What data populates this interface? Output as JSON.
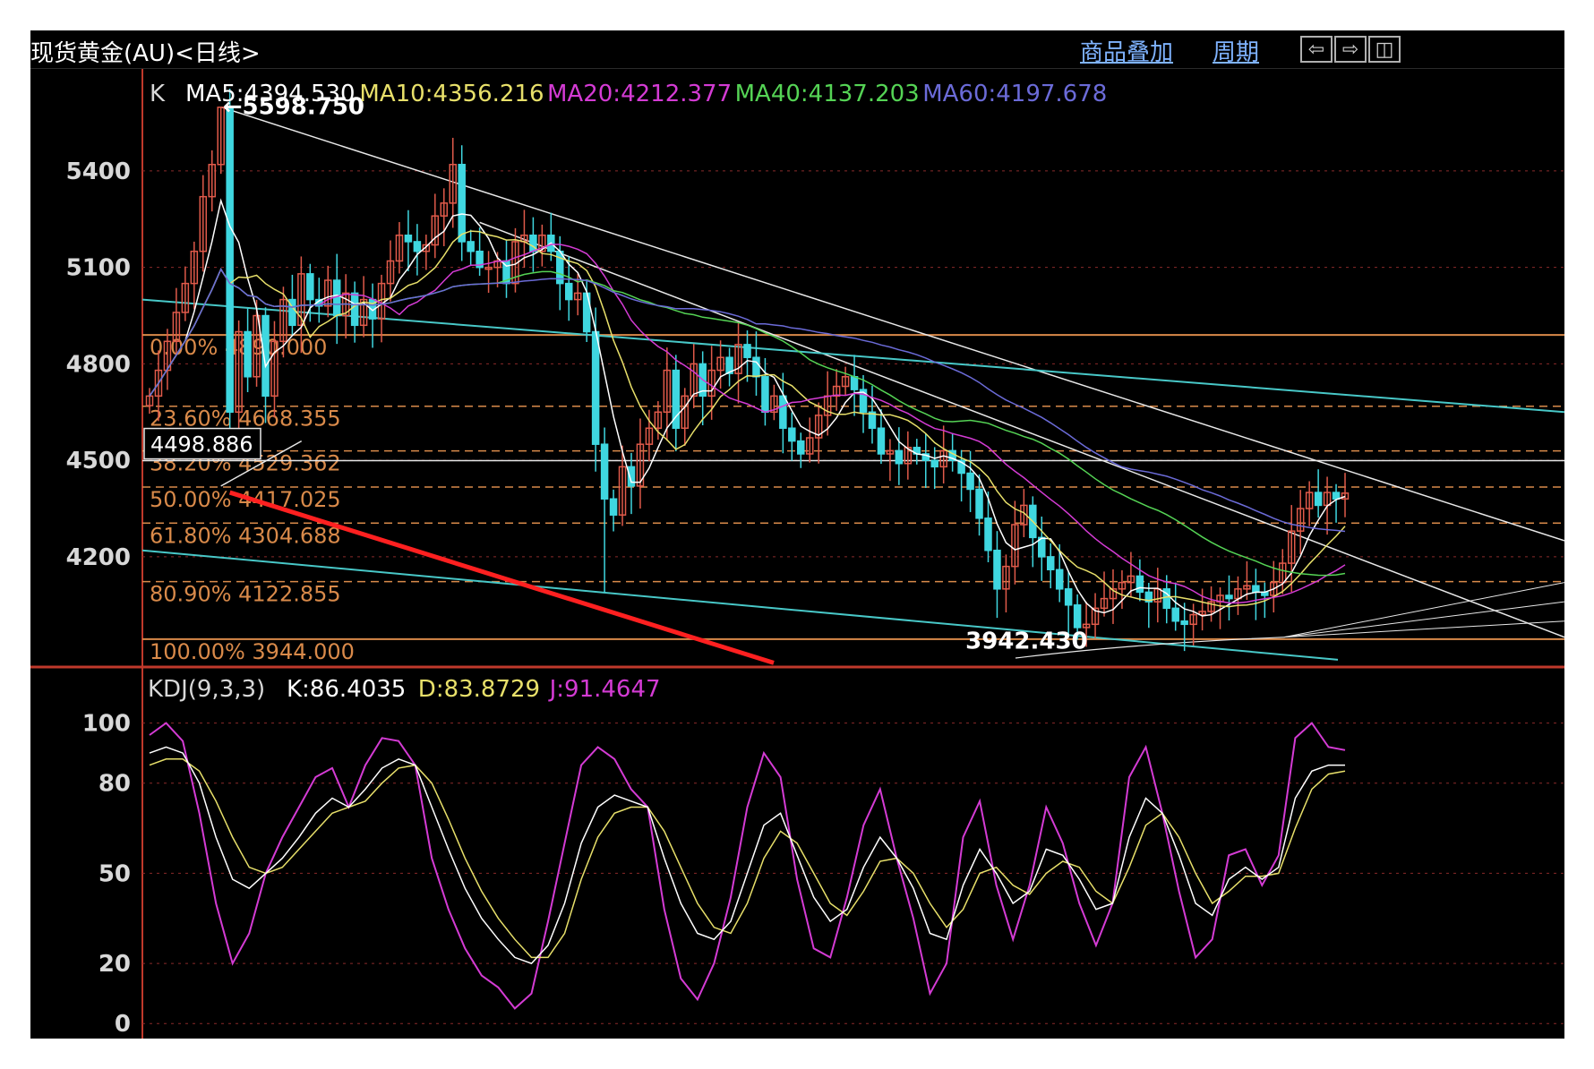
{
  "window": {
    "title": "现货黄金(AU)<日线>",
    "links": [
      "商品叠加",
      "周期"
    ],
    "nav_icons": [
      "arrow-left-icon",
      "arrow-right-icon",
      "layout-icon"
    ]
  },
  "colors": {
    "background": "#000000",
    "frame": "#c0392b",
    "up_candle": "#e05a4a",
    "down_candle": "#3fd7e0",
    "ma5": "#ffffff",
    "ma10": "#e8e06a",
    "ma20": "#d43bd4",
    "ma40": "#55d455",
    "ma60": "#6b6bd8",
    "fib": "#d98a4a",
    "trend_white": "#e8e8e8",
    "trend_cyan": "#48c8c8",
    "trend_red": "#ff2020"
  },
  "chart_data": [
    {
      "type": "candlestick",
      "panel": "price",
      "indicator_label": "K",
      "ma_labels": [
        {
          "text": "MA5:4394.530",
          "color": "#ffffff"
        },
        {
          "text": "MA10:4356.216",
          "color": "#e8e06a"
        },
        {
          "text": "MA20:4212.377",
          "color": "#d43bd4"
        },
        {
          "text": "MA40:4137.203",
          "color": "#55d455"
        },
        {
          "text": "MA60:4197.678",
          "color": "#6b6bd8"
        }
      ],
      "y_ticks": [
        "5400",
        "5100",
        "4800",
        "4500",
        "4200"
      ],
      "y_tick_values": [
        5400,
        5100,
        4800,
        4500,
        4200
      ],
      "ylim": [
        3860,
        5720
      ],
      "high_marker": "←5598.750",
      "low_marker": "3942.430",
      "crosshair_value": "4498.886",
      "fibonacci": [
        {
          "label": "0.00% 4890.000",
          "value": 4890.0
        },
        {
          "label": "23.60% 4668.355",
          "value": 4668.355
        },
        {
          "label": "38.20% 4529.362",
          "value": 4529.362
        },
        {
          "label": "50.00% 4417.025",
          "value": 4417.025
        },
        {
          "label": "61.80% 4304.688",
          "value": 4304.688
        },
        {
          "label": "80.90% 4122.855",
          "value": 4122.855
        },
        {
          "label": "100.00% 3944.000",
          "value": 3944.0
        }
      ],
      "close_series": [
        4700,
        4780,
        4870,
        4960,
        5050,
        5150,
        5320,
        5420,
        5598,
        4650,
        4900,
        4760,
        4950,
        4700,
        4870,
        5000,
        4920,
        5080,
        5000,
        4980,
        5060,
        4950,
        5020,
        4920,
        5000,
        4940,
        5050,
        5120,
        5200,
        5180,
        5150,
        5170,
        5260,
        5300,
        5420,
        5180,
        5150,
        5100,
        5100,
        5120,
        5050,
        5180,
        5200,
        5150,
        5200,
        5150,
        5050,
        5000,
        5020,
        4900,
        4550,
        4380,
        4330,
        4480,
        4420,
        4550,
        4600,
        4650,
        4780,
        4600,
        4700,
        4800,
        4700,
        4780,
        4820,
        4770,
        4860,
        4820,
        4760,
        4650,
        4700,
        4600,
        4560,
        4520,
        4570,
        4640,
        4700,
        4730,
        4760,
        4720,
        4650,
        4600,
        4520,
        4530,
        4490,
        4540,
        4520,
        4500,
        4480,
        4530,
        4500,
        4460,
        4410,
        4320,
        4220,
        4100,
        4170,
        4300,
        4360,
        4260,
        4200,
        4160,
        4100,
        4050,
        3980,
        3990,
        4040,
        4070,
        4100,
        4120,
        4140,
        4090,
        4060,
        4100,
        4040,
        4000,
        3990,
        4020,
        4030,
        4060,
        4080,
        4070,
        4100,
        4110,
        4090,
        4080,
        4120,
        4180,
        4280,
        4350,
        4400,
        4360,
        4400,
        4380,
        4398
      ],
      "kdj_panel": {
        "label": "KDJ(9,3,3)",
        "values_text": [
          {
            "text": "K:86.4035",
            "color": "#ffffff"
          },
          {
            "text": "D:83.8729",
            "color": "#e8e06a"
          },
          {
            "text": "J:91.4647",
            "color": "#d43bd4"
          }
        ],
        "y_ticks": [
          "100",
          "80",
          "50",
          "20",
          "0"
        ],
        "y_tick_values": [
          100,
          80,
          50,
          20,
          0
        ],
        "ylim": [
          -5,
          110
        ],
        "K": [
          90,
          92,
          90,
          80,
          62,
          48,
          45,
          50,
          55,
          62,
          70,
          75,
          72,
          78,
          85,
          88,
          86,
          72,
          58,
          45,
          35,
          28,
          22,
          20,
          26,
          40,
          60,
          72,
          76,
          74,
          72,
          55,
          40,
          30,
          28,
          34,
          50,
          66,
          70,
          56,
          42,
          34,
          38,
          52,
          62,
          55,
          45,
          30,
          28,
          46,
          58,
          50,
          40,
          44,
          58,
          56,
          48,
          38,
          40,
          62,
          75,
          70,
          56,
          40,
          36,
          48,
          52,
          48,
          52,
          75,
          84,
          86,
          86
        ],
        "D": [
          86,
          88,
          88,
          84,
          74,
          62,
          52,
          50,
          52,
          58,
          64,
          70,
          72,
          74,
          80,
          85,
          86,
          80,
          68,
          55,
          44,
          35,
          28,
          22,
          22,
          30,
          48,
          62,
          70,
          72,
          72,
          64,
          52,
          40,
          32,
          30,
          40,
          55,
          64,
          60,
          50,
          40,
          36,
          44,
          54,
          55,
          50,
          40,
          32,
          38,
          50,
          52,
          46,
          43,
          50,
          54,
          52,
          44,
          40,
          52,
          66,
          70,
          62,
          50,
          40,
          44,
          49,
          49,
          50,
          65,
          78,
          83,
          84
        ],
        "J": [
          96,
          100,
          94,
          70,
          40,
          20,
          30,
          50,
          62,
          72,
          82,
          85,
          72,
          86,
          95,
          94,
          86,
          55,
          38,
          25,
          16,
          12,
          5,
          10,
          34,
          60,
          86,
          92,
          88,
          78,
          72,
          38,
          15,
          8,
          20,
          42,
          72,
          90,
          82,
          48,
          25,
          22,
          42,
          66,
          78,
          55,
          35,
          10,
          20,
          62,
          74,
          46,
          28,
          46,
          72,
          60,
          40,
          26,
          40,
          82,
          92,
          70,
          44,
          22,
          28,
          56,
          58,
          46,
          56,
          95,
          100,
          92,
          91
        ]
      }
    }
  ]
}
